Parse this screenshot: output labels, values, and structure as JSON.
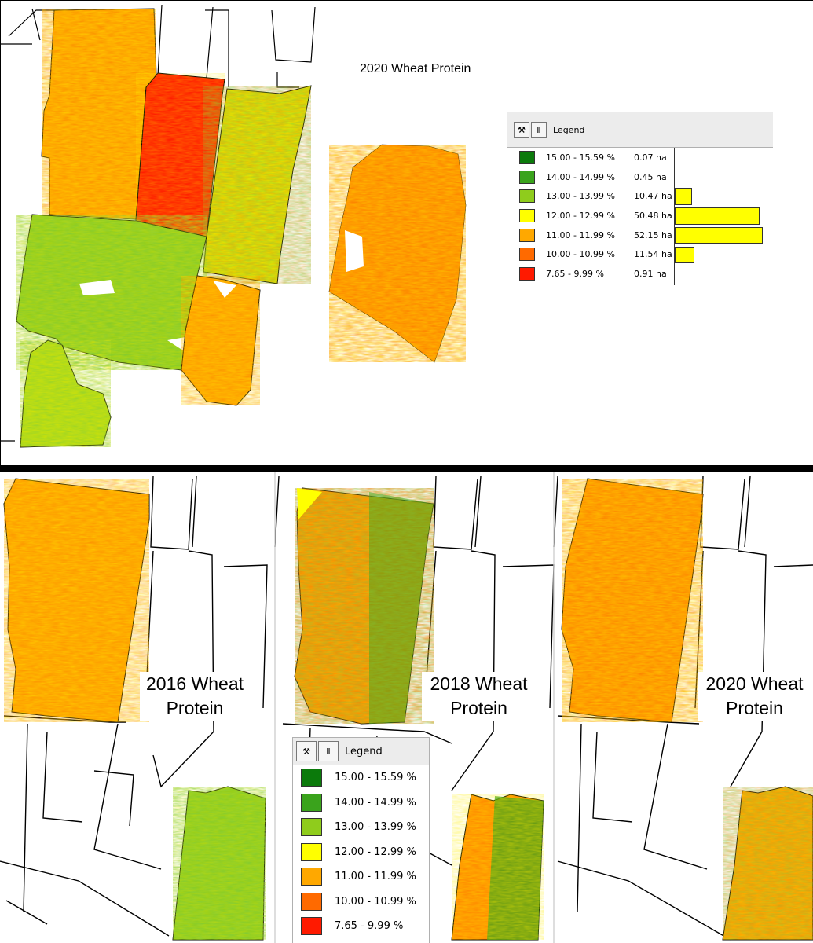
{
  "top": {
    "title": "2020 Wheat Protein",
    "legend": {
      "header": "Legend",
      "classes": [
        {
          "label": "15.00 - 15.59 %",
          "area": "0.07 ha",
          "color": "#0b7a0b",
          "area_ha": 0.07
        },
        {
          "label": "14.00 - 14.99 %",
          "area": "0.45 ha",
          "color": "#3aa31c",
          "area_ha": 0.45
        },
        {
          "label": "13.00 - 13.99 %",
          "area": "10.47 ha",
          "color": "#8fcc1c",
          "area_ha": 10.47
        },
        {
          "label": "12.00 - 12.99 %",
          "area": "50.48 ha",
          "color": "#ffff00",
          "area_ha": 50.48
        },
        {
          "label": "11.00 - 11.99 %",
          "area": "52.15 ha",
          "color": "#ffa800",
          "area_ha": 52.15
        },
        {
          "label": "10.00 - 10.99 %",
          "area": "11.54 ha",
          "color": "#ff6a00",
          "area_ha": 11.54
        },
        {
          "label": "7.65 - 9.99 %",
          "area": "0.91 ha",
          "color": "#ff1a00",
          "area_ha": 0.91
        }
      ]
    }
  },
  "bottom": {
    "labels": [
      {
        "line1": "2016 Wheat",
        "line2": "Protein"
      },
      {
        "line1": "2018 Wheat",
        "line2": "Protein"
      },
      {
        "line1": "2020 Wheat",
        "line2": "Protein"
      }
    ],
    "legend": {
      "header": "Legend",
      "classes": [
        {
          "label": "15.00 - 15.59 %",
          "color": "#0b7a0b"
        },
        {
          "label": "14.00 - 14.99 %",
          "color": "#3aa31c"
        },
        {
          "label": "13.00 - 13.99 %",
          "color": "#8fcc1c"
        },
        {
          "label": "12.00 - 12.99 %",
          "color": "#ffff00"
        },
        {
          "label": "11.00 - 11.99 %",
          "color": "#ffa800"
        },
        {
          "label": "10.00 - 10.99 %",
          "color": "#ff6a00"
        },
        {
          "label": "7.65 - 9.99 %",
          "color": "#ff1a00"
        }
      ]
    }
  }
}
